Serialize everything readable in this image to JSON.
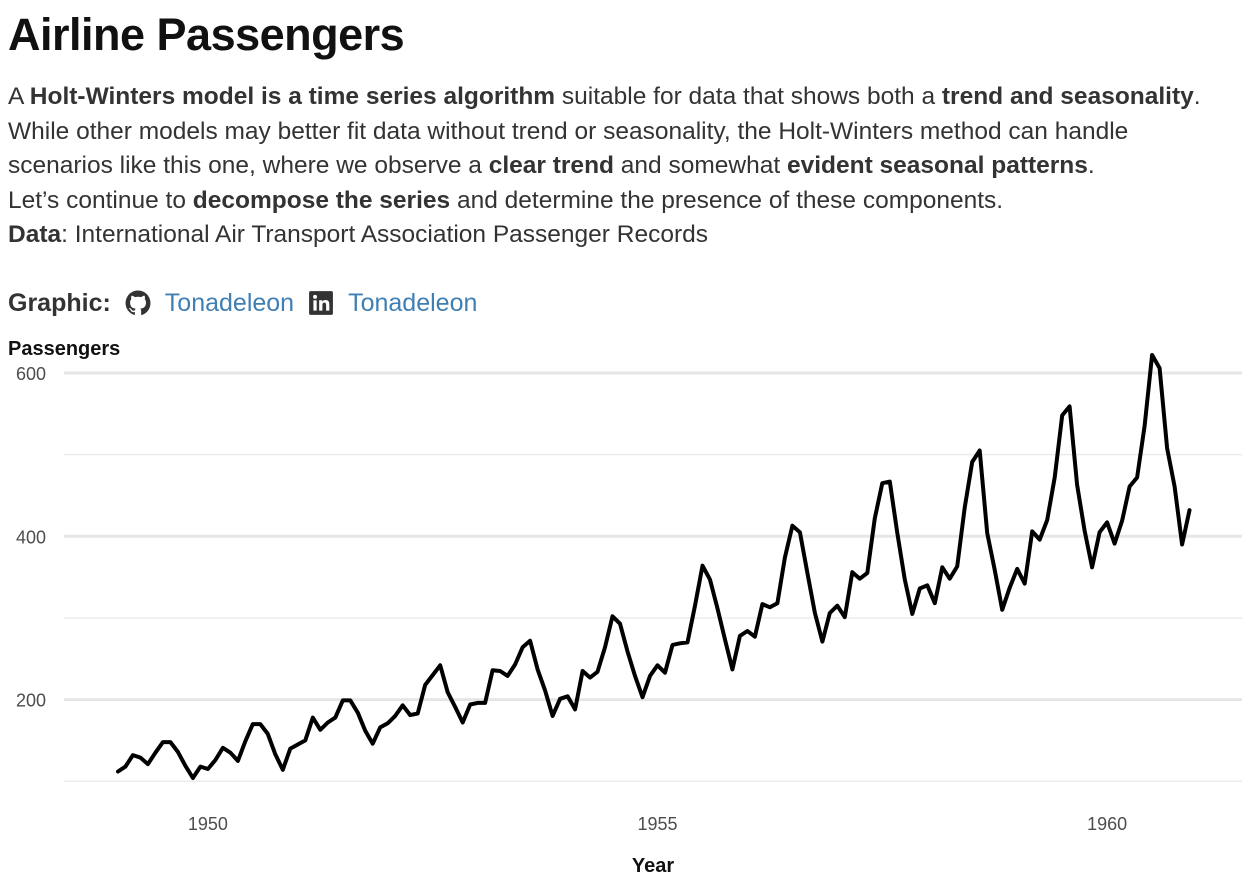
{
  "header": {
    "title": "Airline Passengers"
  },
  "description": {
    "p1": [
      {
        "text": "A ",
        "bold": false
      },
      {
        "text": "Holt-Winters model is a time series algorithm",
        "bold": true
      },
      {
        "text": " suitable for data that shows both a ",
        "bold": false
      },
      {
        "text": "trend and seasonality",
        "bold": true
      },
      {
        "text": ". While other models may better fit data without trend or seasonality, the Holt-Winters method can handle scenarios like this one, where we observe a ",
        "bold": false
      },
      {
        "text": "clear trend",
        "bold": true
      },
      {
        "text": " and somewhat ",
        "bold": false
      },
      {
        "text": "evident seasonal patterns",
        "bold": true
      },
      {
        "text": ".",
        "bold": false
      }
    ],
    "p2": [
      {
        "text": "Let’s continue to ",
        "bold": false
      },
      {
        "text": "decompose the series",
        "bold": true
      },
      {
        "text": " and determine the presence of these components.",
        "bold": false
      }
    ],
    "data_label": "Data",
    "data_text": ": International Air Transport Association Passenger Records"
  },
  "credits": {
    "label": "Graphic:",
    "github_icon": "github-icon",
    "github_handle": "Tonadeleon",
    "linkedin_icon": "linkedin-icon",
    "linkedin_handle": "Tonadeleon",
    "link_color": "#3f7fb4"
  },
  "chart_data": {
    "type": "line",
    "title": "",
    "xlabel": "Year",
    "ylabel": "Passengers",
    "x_start": 1949,
    "x_step_months": 1,
    "xlim": [
      1948.4,
      1961.5
    ],
    "ylim": [
      104,
      622
    ],
    "xticks": [
      1950,
      1955,
      1960
    ],
    "yticks": [
      200,
      400,
      600
    ],
    "minor_yticks": [
      100,
      300,
      500
    ],
    "grid": true,
    "line_color": "#000000",
    "series": [
      {
        "values": [
          112,
          118,
          132,
          129,
          121,
          135,
          148,
          148,
          136,
          119,
          104,
          118,
          115,
          126,
          141,
          135,
          125,
          149,
          170,
          170,
          158,
          133,
          114,
          140,
          145,
          150,
          178,
          163,
          172,
          178,
          199,
          199,
          184,
          162,
          146,
          166,
          171,
          180,
          193,
          181,
          183,
          218,
          230,
          242,
          209,
          191,
          172,
          194,
          196,
          196,
          236,
          235,
          229,
          243,
          264,
          272,
          237,
          211,
          180,
          201,
          204,
          188,
          235,
          227,
          234,
          264,
          302,
          293,
          259,
          229,
          203,
          229,
          242,
          233,
          267,
          269,
          270,
          315,
          364,
          347,
          312,
          274,
          237,
          278,
          284,
          277,
          317,
          313,
          318,
          374,
          413,
          405,
          355,
          306,
          271,
          306,
          315,
          301,
          356,
          348,
          355,
          422,
          465,
          467,
          404,
          347,
          305,
          336,
          340,
          318,
          362,
          348,
          363,
          435,
          491,
          505,
          404,
          359,
          310,
          337,
          360,
          342,
          406,
          396,
          420,
          472,
          548,
          559,
          463,
          407,
          362,
          405,
          417,
          391,
          419,
          461,
          472,
          535,
          622,
          606,
          508,
          461,
          390,
          432
        ]
      }
    ]
  }
}
